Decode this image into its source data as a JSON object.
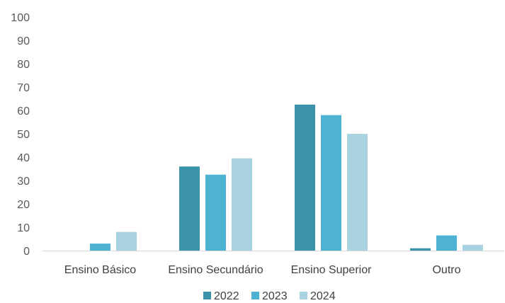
{
  "chart_data": {
    "type": "bar",
    "title": "",
    "xlabel": "",
    "ylabel": "",
    "categories": [
      "Ensino Básico",
      "Ensino Secundário",
      "Ensino Superior",
      "Outro"
    ],
    "series": [
      {
        "name": "2022",
        "color": "#3a93a8",
        "values": [
          0,
          36,
          62.5,
          1
        ]
      },
      {
        "name": "2023",
        "color": "#4eb3d3",
        "values": [
          3,
          32.5,
          58,
          6.5
        ]
      },
      {
        "name": "2024",
        "color": "#a9d3e1",
        "values": [
          8,
          39.5,
          50,
          2.5
        ]
      }
    ],
    "ylim": [
      0,
      100
    ],
    "yticks": [
      "0",
      "10",
      "20",
      "30",
      "40",
      "50",
      "60",
      "70",
      "80",
      "90",
      "100"
    ],
    "grid": false,
    "legend": "bottom-center"
  }
}
